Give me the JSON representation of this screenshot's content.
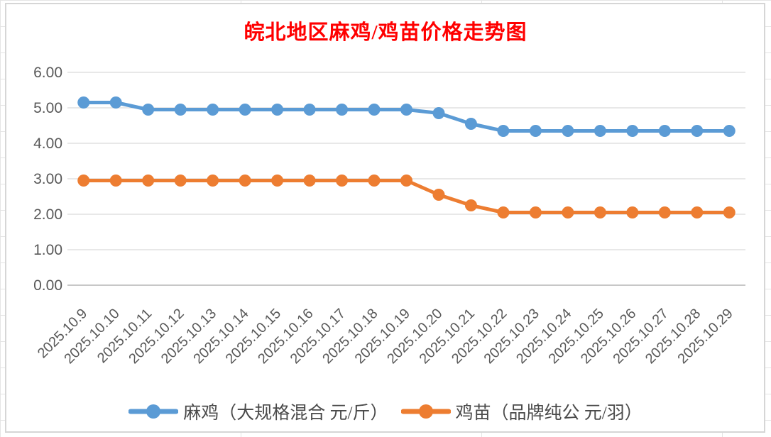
{
  "chart_data": {
    "type": "line",
    "title": "皖北地区麻鸡/鸡苗价格走势图",
    "title_color": "#FF0000",
    "categories": [
      "2025.10.9",
      "2025.10.10",
      "2025.10.11",
      "2025.10.12",
      "2025.10.13",
      "2025.10.14",
      "2025.10.15",
      "2025.10.16",
      "2025.10.17",
      "2025.10.18",
      "2025.10.19",
      "2025.10.20",
      "2025.10.21",
      "2025.10.22",
      "2025.10.23",
      "2025.10.24",
      "2025.10.25",
      "2025.10.26",
      "2025.10.27",
      "2025.10.28",
      "2025.10.29"
    ],
    "series": [
      {
        "name": "麻鸡（大规格混合 元/斤）",
        "color": "#5B9BD5",
        "values": [
          5.15,
          5.15,
          4.95,
          4.95,
          4.95,
          4.95,
          4.95,
          4.95,
          4.95,
          4.95,
          4.95,
          4.85,
          4.55,
          4.35,
          4.35,
          4.35,
          4.35,
          4.35,
          4.35,
          4.35,
          4.35
        ]
      },
      {
        "name": "鸡苗（品牌纯公 元/羽）",
        "color": "#ED7D31",
        "values": [
          2.95,
          2.95,
          2.95,
          2.95,
          2.95,
          2.95,
          2.95,
          2.95,
          2.95,
          2.95,
          2.95,
          2.55,
          2.25,
          2.05,
          2.05,
          2.05,
          2.05,
          2.05,
          2.05,
          2.05,
          2.05
        ]
      }
    ],
    "xlabel": "",
    "ylabel": "",
    "ylim": [
      0,
      6
    ],
    "ytick_labels": [
      "0.00",
      "1.00",
      "2.00",
      "3.00",
      "4.00",
      "5.00",
      "6.00"
    ],
    "grid": true,
    "legend_position": "bottom",
    "gridline_color": "#D9D9D9",
    "axis_line_color": "#BFBFBF",
    "axis_text_color": "#595959"
  }
}
